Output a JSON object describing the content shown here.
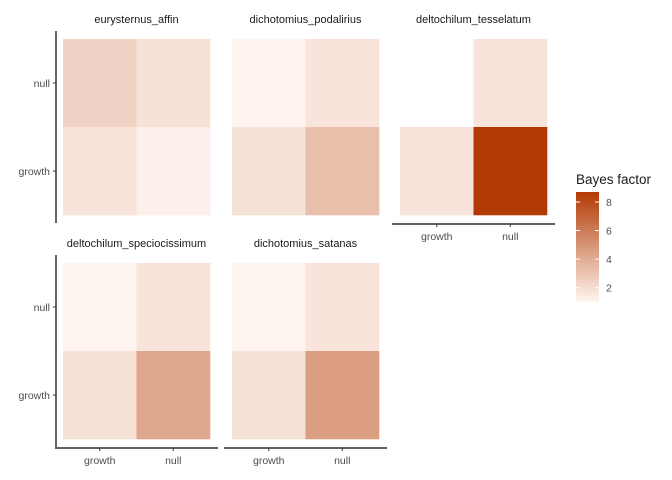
{
  "chart_data": {
    "type": "heatmap",
    "x_categories": [
      "growth",
      "null"
    ],
    "y_categories": [
      "growth",
      "null"
    ],
    "legend": {
      "title": "Bayes factor",
      "ticks": [
        2,
        4,
        6,
        8
      ],
      "range": [
        1,
        8.7
      ],
      "low_color": "#fff5f0",
      "high_color": "#b13a03"
    },
    "panels": [
      {
        "title": "eurysternus_affin",
        "cells": [
          {
            "x": "growth",
            "y": "null",
            "value": 2.4
          },
          {
            "x": "null",
            "y": "null",
            "value": 1.8
          },
          {
            "x": "growth",
            "y": "growth",
            "value": 1.7
          },
          {
            "x": "null",
            "y": "growth",
            "value": 1.2
          }
        ]
      },
      {
        "title": "dichotomius_podalirius",
        "cells": [
          {
            "x": "growth",
            "y": "null",
            "value": 1.1
          },
          {
            "x": "null",
            "y": "null",
            "value": 1.7
          },
          {
            "x": "growth",
            "y": "growth",
            "value": 1.8
          },
          {
            "x": "null",
            "y": "growth",
            "value": 3.2
          }
        ]
      },
      {
        "title": "deltochilum_tesselatum",
        "cells": [
          {
            "x": "growth",
            "y": "null",
            "value": null
          },
          {
            "x": "null",
            "y": "null",
            "value": 1.7
          },
          {
            "x": "growth",
            "y": "growth",
            "value": 1.7
          },
          {
            "x": "null",
            "y": "growth",
            "value": 8.7
          }
        ]
      },
      {
        "title": "deltochilum_speciocissimum",
        "cells": [
          {
            "x": "growth",
            "y": "null",
            "value": 1.05
          },
          {
            "x": "null",
            "y": "null",
            "value": 1.7
          },
          {
            "x": "growth",
            "y": "growth",
            "value": 1.8
          },
          {
            "x": "null",
            "y": "growth",
            "value": 4.2
          }
        ]
      },
      {
        "title": "dichotomius_satanas",
        "cells": [
          {
            "x": "growth",
            "y": "null",
            "value": 1.05
          },
          {
            "x": "null",
            "y": "null",
            "value": 1.7
          },
          {
            "x": "growth",
            "y": "growth",
            "value": 1.8
          },
          {
            "x": "null",
            "y": "growth",
            "value": 4.6
          }
        ]
      }
    ]
  }
}
